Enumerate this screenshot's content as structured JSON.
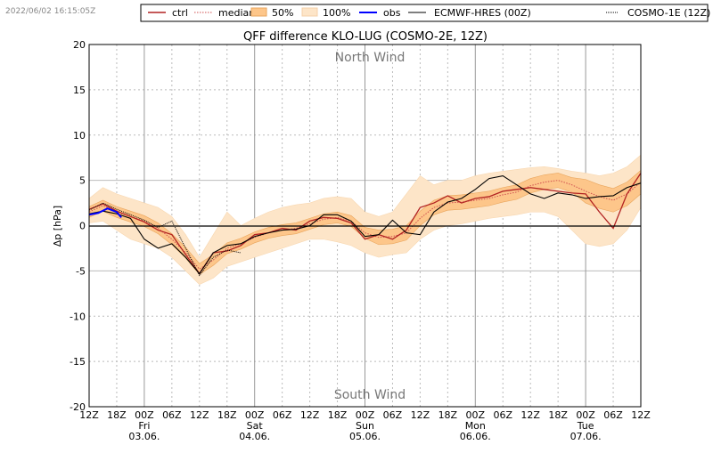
{
  "timestamp": "2022/06/02 16:15:05Z",
  "legend": {
    "ctrl": "ctrl",
    "median": "median",
    "p50": "50%",
    "p100": "100%",
    "obs": "obs",
    "ecmwf": "ECMWF-HRES (00Z)",
    "cosmo1": "COSMO-1E (12Z)"
  },
  "colors": {
    "ctrl": "#b22222",
    "median": "#d05050",
    "band50": "#fdc68a",
    "band100": "#fde5c8",
    "obs": "#0000ff",
    "ecmwf": "#000000",
    "cosmo1": "#000000"
  },
  "chart_data": {
    "type": "line",
    "title": "QFF difference KLO-LUG (COSMO-2E, 12Z)",
    "ylabel": "Δp [hPa]",
    "ylim": [
      -20,
      20
    ],
    "yticks": [
      -20,
      -15,
      -10,
      -5,
      0,
      5,
      10,
      15,
      20
    ],
    "xlim_hours": [
      0,
      120
    ],
    "xtick_labels": [
      "12Z",
      "18Z",
      "00Z",
      "06Z",
      "12Z",
      "18Z",
      "00Z",
      "06Z",
      "12Z",
      "18Z",
      "00Z",
      "06Z",
      "12Z",
      "18Z",
      "00Z",
      "06Z",
      "12Z",
      "18Z",
      "00Z",
      "06Z",
      "12Z"
    ],
    "day_labels": [
      {
        "day": "Fri",
        "date": "03.06."
      },
      {
        "day": "Sat",
        "date": "04.06."
      },
      {
        "day": "Sun",
        "date": "05.06."
      },
      {
        "day": "Mon",
        "date": "06.06."
      },
      {
        "day": "Tue",
        "date": "07.06."
      }
    ],
    "annotations": {
      "top": "North Wind",
      "bottom": "South Wind"
    },
    "grid": true,
    "legend_placement": "top, outside",
    "x_step_hours": 3,
    "series": {
      "median": [
        1.5,
        2.2,
        1.5,
        1.0,
        0.5,
        -0.3,
        -1.5,
        -3.0,
        -4.8,
        -3.8,
        -2.5,
        -2.0,
        -1.3,
        -0.8,
        -0.5,
        -0.3,
        0.2,
        0.7,
        0.9,
        0.5,
        -0.8,
        -1.3,
        -1.2,
        -0.8,
        0.8,
        2.0,
        2.5,
        2.6,
        2.8,
        3.0,
        3.4,
        3.7,
        4.4,
        4.8,
        5.0,
        4.5,
        3.8,
        3.2,
        2.8,
        3.5,
        4.8
      ],
      "p25": [
        0.9,
        1.6,
        0.9,
        0.4,
        -0.1,
        -0.9,
        -2.1,
        -3.6,
        -5.4,
        -4.4,
        -3.1,
        -2.6,
        -1.9,
        -1.4,
        -1.1,
        -0.9,
        -0.4,
        0.1,
        0.3,
        -0.1,
        -1.4,
        -2.1,
        -2.0,
        -1.6,
        0.0,
        1.2,
        1.7,
        1.8,
        2.0,
        2.2,
        2.6,
        2.9,
        3.6,
        4.0,
        4.2,
        3.7,
        2.5,
        1.9,
        1.5,
        2.2,
        3.5
      ],
      "p75": [
        2.1,
        2.8,
        2.1,
        1.6,
        1.1,
        0.3,
        -0.9,
        -2.4,
        -4.2,
        -3.2,
        -1.9,
        -1.4,
        -0.7,
        -0.2,
        0.1,
        0.3,
        0.8,
        1.3,
        1.5,
        1.1,
        -0.2,
        -0.5,
        -0.4,
        0.0,
        1.6,
        2.8,
        3.3,
        3.4,
        3.6,
        3.8,
        4.2,
        4.5,
        5.2,
        5.6,
        5.8,
        5.3,
        5.1,
        4.5,
        4.1,
        4.8,
        6.1
      ],
      "min": [
        0.3,
        0.5,
        -0.5,
        -1.5,
        -2.0,
        -2.5,
        -3.5,
        -5.0,
        -6.5,
        -5.8,
        -4.5,
        -4.0,
        -3.5,
        -3.0,
        -2.5,
        -2.0,
        -1.5,
        -1.5,
        -1.8,
        -2.2,
        -3.0,
        -3.5,
        -3.2,
        -3.0,
        -1.5,
        -0.5,
        0.0,
        0.2,
        0.5,
        0.8,
        1.0,
        1.2,
        1.5,
        1.5,
        1.0,
        -0.5,
        -2.0,
        -2.3,
        -2.0,
        -0.5,
        2.0
      ],
      "max": [
        3.0,
        4.2,
        3.5,
        3.0,
        2.5,
        2.0,
        1.0,
        -1.0,
        -3.5,
        -1.0,
        1.5,
        0.0,
        0.8,
        1.5,
        2.0,
        2.3,
        2.5,
        3.0,
        3.2,
        3.0,
        1.5,
        1.0,
        1.5,
        3.5,
        5.5,
        4.5,
        5.0,
        5.0,
        5.5,
        5.8,
        6.0,
        6.2,
        6.4,
        6.5,
        6.3,
        6.0,
        5.8,
        5.5,
        5.8,
        6.5,
        7.8
      ],
      "ctrl": [
        1.8,
        2.4,
        1.6,
        1.0,
        0.4,
        -0.5,
        -1.0,
        -3.2,
        -5.3,
        -3.0,
        -2.8,
        -2.2,
        -1.0,
        -0.8,
        -0.3,
        -0.5,
        0.5,
        0.9,
        0.8,
        0.3,
        -1.5,
        -1.0,
        -1.5,
        -0.5,
        2.0,
        2.5,
        3.3,
        2.5,
        3.0,
        3.2,
        3.8,
        4.0,
        4.2,
        4.0,
        3.8,
        3.6,
        3.5,
        1.5,
        -0.3,
        3.5,
        5.8
      ],
      "ecmwf": [
        1.3,
        1.6,
        1.3,
        0.8,
        -1.5,
        -2.5,
        -2.0,
        -3.5,
        -5.3,
        -3.0,
        -2.2,
        -2.0,
        -1.2,
        -0.8,
        -0.5,
        -0.4,
        0.0,
        1.2,
        1.2,
        0.5,
        -1.2,
        -1.0,
        0.6,
        -0.8,
        -1.0,
        1.5,
        2.6,
        3.0,
        4.0,
        5.2,
        5.5,
        4.5,
        3.5,
        3.0,
        3.6,
        3.4,
        3.0,
        3.2,
        3.3,
        4.2,
        4.7
      ],
      "cosmo1": [
        1.7,
        2.5,
        1.8,
        1.2,
        0.6,
        -0.2,
        0.5,
        -2.5,
        -5.5,
        -3.5,
        -2.7,
        -3.0
      ],
      "obs": [
        [
          0,
          1.2
        ],
        [
          2,
          1.4
        ],
        [
          4,
          1.9
        ],
        [
          6,
          1.5
        ],
        [
          7,
          0.9
        ]
      ]
    }
  }
}
